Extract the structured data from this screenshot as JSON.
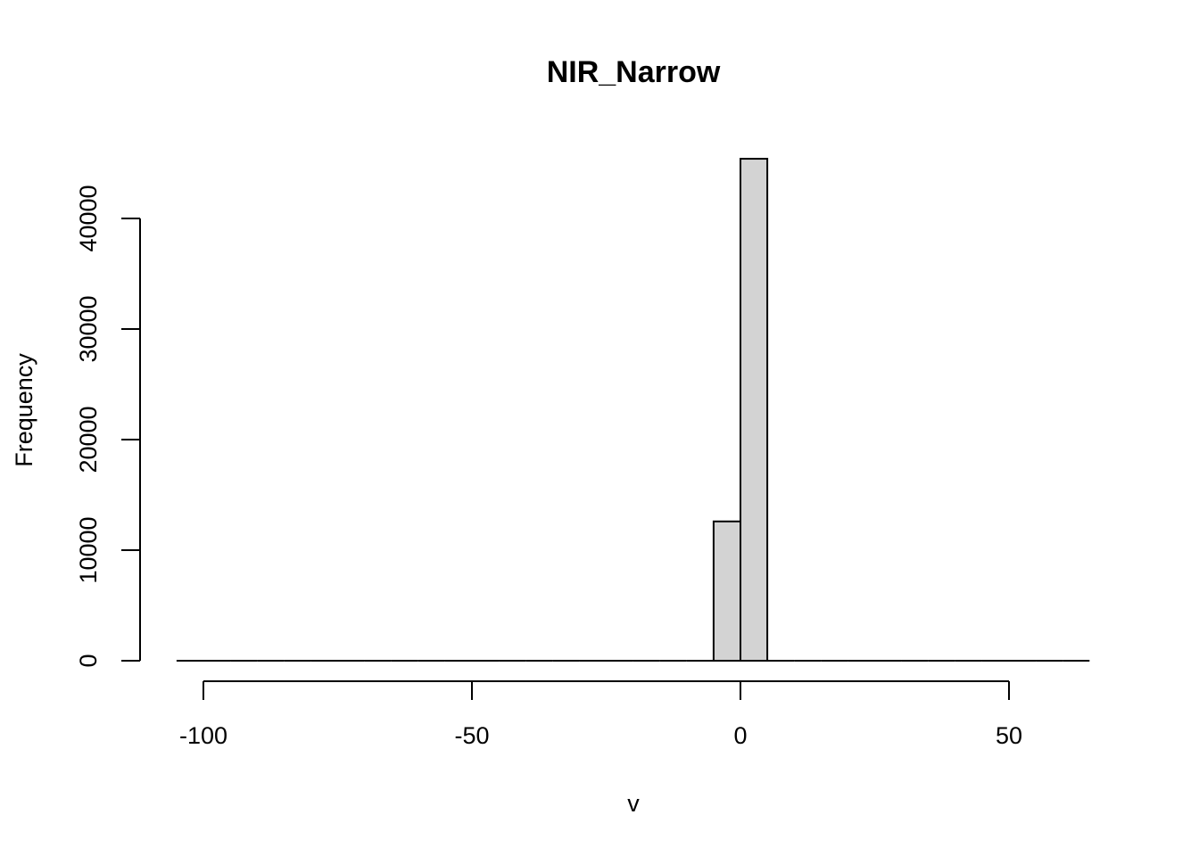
{
  "chart_data": {
    "type": "bar",
    "title": "NIR_Narrow",
    "xlabel": "v",
    "ylabel": "Frequency",
    "xlim": [
      -100,
      60
    ],
    "ylim": [
      0,
      45000
    ],
    "x_ticks": [
      -100,
      -50,
      0,
      50
    ],
    "x_tick_labels": [
      "-100",
      "-50",
      "0",
      "50"
    ],
    "y_ticks": [
      0,
      10000,
      20000,
      30000,
      40000
    ],
    "y_tick_labels": [
      "0",
      "10000",
      "20000",
      "30000",
      "40000"
    ],
    "bin_width": 5,
    "bins": [
      {
        "start": -105,
        "end": -100,
        "count": 0
      },
      {
        "start": -100,
        "end": -95,
        "count": 0
      },
      {
        "start": -95,
        "end": -90,
        "count": 0
      },
      {
        "start": -90,
        "end": -85,
        "count": 0
      },
      {
        "start": -85,
        "end": -80,
        "count": 0
      },
      {
        "start": -80,
        "end": -75,
        "count": 0
      },
      {
        "start": -75,
        "end": -70,
        "count": 0
      },
      {
        "start": -70,
        "end": -65,
        "count": 0
      },
      {
        "start": -65,
        "end": -60,
        "count": 0
      },
      {
        "start": -60,
        "end": -55,
        "count": 0
      },
      {
        "start": -55,
        "end": -50,
        "count": 0
      },
      {
        "start": -50,
        "end": -45,
        "count": 0
      },
      {
        "start": -45,
        "end": -40,
        "count": 0
      },
      {
        "start": -40,
        "end": -35,
        "count": 0
      },
      {
        "start": -35,
        "end": -30,
        "count": 0
      },
      {
        "start": -30,
        "end": -25,
        "count": 0
      },
      {
        "start": -25,
        "end": -20,
        "count": 0
      },
      {
        "start": -20,
        "end": -15,
        "count": 0
      },
      {
        "start": -15,
        "end": -10,
        "count": 0
      },
      {
        "start": -10,
        "end": -5,
        "count": 0
      },
      {
        "start": -5,
        "end": 0,
        "count": 12600
      },
      {
        "start": 0,
        "end": 5,
        "count": 45400
      },
      {
        "start": 5,
        "end": 10,
        "count": 0
      },
      {
        "start": 10,
        "end": 15,
        "count": 0
      },
      {
        "start": 15,
        "end": 20,
        "count": 0
      },
      {
        "start": 20,
        "end": 25,
        "count": 0
      },
      {
        "start": 25,
        "end": 30,
        "count": 0
      },
      {
        "start": 30,
        "end": 35,
        "count": 0
      },
      {
        "start": 35,
        "end": 40,
        "count": 0
      },
      {
        "start": 40,
        "end": 45,
        "count": 0
      },
      {
        "start": 45,
        "end": 50,
        "count": 0
      },
      {
        "start": 50,
        "end": 55,
        "count": 0
      },
      {
        "start": 55,
        "end": 60,
        "count": 0
      },
      {
        "start": 60,
        "end": 65,
        "count": 0
      }
    ],
    "grid": false,
    "legend": "none",
    "colors": {
      "bar_fill": "#d3d3d3",
      "bar_stroke": "#000000"
    }
  }
}
